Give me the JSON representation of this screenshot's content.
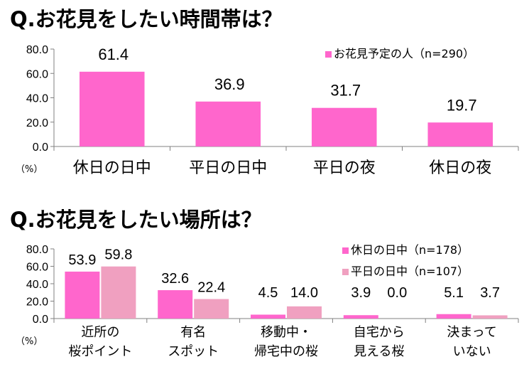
{
  "titles": {
    "q1": "Q.お花見をしたい時間帯は？",
    "q2": "Q.お花見をしたい場所は？"
  },
  "colors": {
    "series_a": "#ff66cc",
    "series_b": "#f0a0c0",
    "axis": "#808080"
  },
  "chart_data": [
    {
      "type": "bar",
      "title": "Q.お花見をしたい時間帯は？",
      "unit_label": "（%）",
      "categories": [
        "休日の日中",
        "平日の日中",
        "平日の夜",
        "休日の夜"
      ],
      "series": [
        {
          "name": "お花見予定の人（n=290）",
          "values": [
            61.4,
            36.9,
            31.7,
            19.7
          ]
        }
      ],
      "value_labels": [
        "61.4",
        "36.9",
        "31.7",
        "19.7"
      ],
      "ylim": [
        0,
        80
      ],
      "yticks": [
        "0.0",
        "20.0",
        "40.0",
        "60.0",
        "80.0"
      ],
      "grid": false,
      "legend_position": "top-right"
    },
    {
      "type": "bar",
      "title": "Q.お花見をしたい場所は？",
      "unit_label": "（%）",
      "categories": [
        [
          "近所の",
          "桜ポイント"
        ],
        [
          "有名",
          "スポット"
        ],
        [
          "移動中・",
          "帰宅中の桜"
        ],
        [
          "自宅から",
          "見える桜"
        ],
        [
          "決まって",
          "いない"
        ]
      ],
      "series": [
        {
          "name": "休日の日中（n=178）",
          "values": [
            53.9,
            32.6,
            4.5,
            3.9,
            5.1
          ],
          "value_labels": [
            "53.9",
            "32.6",
            "4.5",
            "3.9",
            "5.1"
          ]
        },
        {
          "name": "平日の日中（n=107）",
          "values": [
            59.8,
            22.4,
            14.0,
            0.0,
            3.7
          ],
          "value_labels": [
            "59.8",
            "22.4",
            "14.0",
            "0.0",
            "3.7"
          ]
        }
      ],
      "ylim": [
        0,
        80
      ],
      "yticks": [
        "0.0",
        "20.0",
        "40.0",
        "60.0",
        "80.0"
      ],
      "grid": false,
      "legend_position": "top-right"
    }
  ]
}
